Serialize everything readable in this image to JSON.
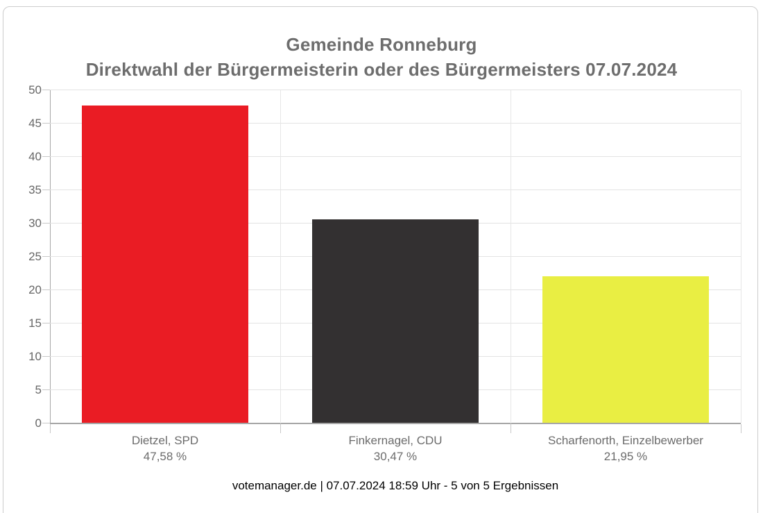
{
  "chart": {
    "title_line1": "Gemeinde Ronneburg",
    "title_line2": "Direktwahl der Bürgermeisterin oder des Bürgermeisters 07.07.2024"
  },
  "footer": {
    "text": "votemanager.de | 07.07.2024 18:59 Uhr - 5 von 5 Ergebnissen"
  },
  "colors": {
    "spd_red": "#ea1c24",
    "cdu_dark": "#333031",
    "einzelbewerber_yellow": "#e9ee43",
    "title_gray": "#6d6d6d",
    "label_gray": "#666666",
    "grid_gray": "#e3e3e3",
    "axis_gray": "#a6a6a6"
  },
  "chart_data": {
    "type": "bar",
    "title": "Gemeinde Ronneburg",
    "subtitle": "Direktwahl der Bürgermeisterin oder des Bürgermeisters 07.07.2024",
    "categories": [
      "Dietzel, SPD",
      "Finkernagel, CDU",
      "Scharfenorth, Einzelbewerber"
    ],
    "values": [
      47.58,
      30.47,
      21.95
    ],
    "value_labels": [
      "47,58 %",
      "30,47 %",
      "21,95 %"
    ],
    "bar_colors": [
      "#ea1c24",
      "#333031",
      "#e9ee43"
    ],
    "xlabel": "",
    "ylabel": "",
    "ylim": [
      0,
      50
    ],
    "ytick_step": 5,
    "yticks": [
      0,
      5,
      10,
      15,
      20,
      25,
      30,
      35,
      40,
      45,
      50
    ],
    "grid": true,
    "legend": false,
    "caption": "votemanager.de | 07.07.2024 18:59 Uhr - 5 von 5 Ergebnissen"
  }
}
